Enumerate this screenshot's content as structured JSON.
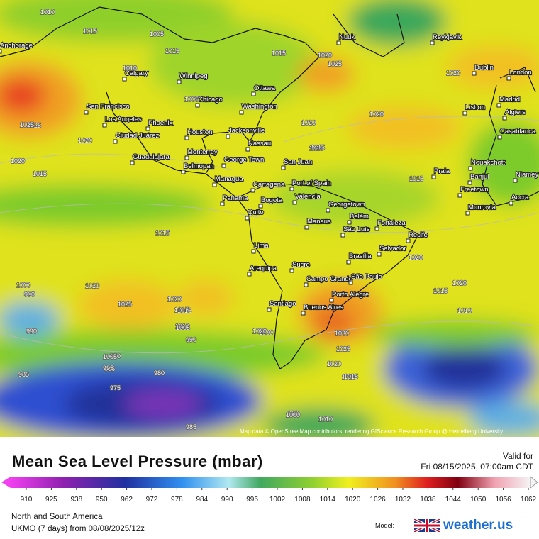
{
  "header": {
    "title": "Mean Sea Level Pressure (mbar)",
    "valid_label": "Valid for",
    "valid_time": "Fri 08/15/2025, 07:00am CDT"
  },
  "footer": {
    "region": "North and South America",
    "model_run": "UKMO (7 days) from 08/08/2025/12z",
    "model_label": "Model:",
    "brand": "weather.us"
  },
  "attribution": "Map data © OpenStreetMap contributors, rendering GIScience Research Group @ Heidelberg University",
  "colorbar": {
    "ticks": [
      910,
      925,
      938,
      950,
      962,
      972,
      978,
      984,
      990,
      996,
      1002,
      1008,
      1014,
      1020,
      1026,
      1032,
      1038,
      1044,
      1050,
      1056,
      1062
    ]
  },
  "cities": [
    "Anchorage",
    "Calgary",
    "Winnipeg",
    "Ottawa",
    "Chicago",
    "Washington",
    "San Francisco",
    "Los Angeles",
    "Phoenix",
    "Houston",
    "Jacksonville",
    "Ciudad Juárez",
    "Nassau",
    "Monterrey",
    "Guadalajara",
    "George Town",
    "San Juan",
    "Belmopan",
    "Managua",
    "Cartagena",
    "Port of Spain",
    "Valencia",
    "Panama",
    "Bogota",
    "Georgetown",
    "Quito",
    "Belém",
    "Manaus",
    "São Luís",
    "Fortaleza",
    "Recife",
    "Lima",
    "Brasília",
    "Salvador",
    "Sucre",
    "Arequipa",
    "Campo Grande",
    "São Paulo",
    "Porto Alegre",
    "Santiago",
    "Buenos Aires",
    "Nuuk",
    "Reykjavik",
    "Dublin",
    "London",
    "Madrid",
    "Lisbon",
    "Algiers",
    "Casablanca",
    "Praia",
    "Nouakchott",
    "Banjul",
    "Niamey",
    "Freetown",
    "Accra",
    "Monrovia"
  ],
  "isobar_labels": [
    1010,
    1015,
    1015,
    1005,
    1015,
    1020,
    1025,
    1025,
    1020,
    1020,
    1015,
    1015,
    1020,
    1015,
    1015,
    1010,
    1005,
    1020,
    1025,
    1020,
    1015,
    1000,
    990,
    990,
    1020,
    1030,
    1025,
    1020,
    1015,
    1020,
    1015,
    1010,
    1005,
    1000,
    990,
    980,
    985,
    975,
    1005,
    995,
    985,
    980,
    985,
    980,
    1010,
    1000,
    1020,
    1015,
    1010,
    1025,
    1015,
    1020,
    1020,
    1015
  ]
}
